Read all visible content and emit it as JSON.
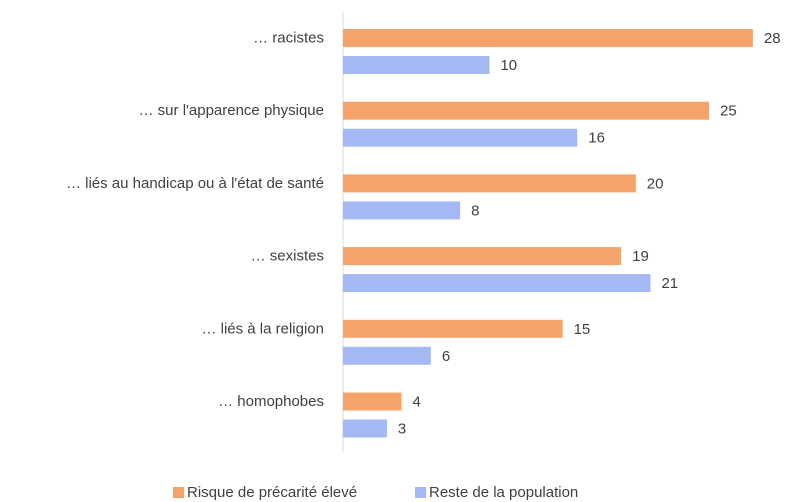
{
  "chart_data": {
    "type": "bar",
    "orientation": "horizontal",
    "categories": [
      "… racistes",
      "… sur l'apparence physique",
      "… liés au handicap ou à l'état de santé",
      "… sexistes",
      "… liés à la religion",
      "… homophobes"
    ],
    "series": [
      {
        "name": "Risque de précarité élevé",
        "color": "#f4a46a",
        "values": [
          28,
          25,
          20,
          19,
          15,
          4
        ]
      },
      {
        "name": "Reste de la population",
        "color": "#a4b8f4",
        "values": [
          10,
          16,
          8,
          21,
          6,
          3
        ]
      }
    ],
    "legend": "bottom"
  }
}
